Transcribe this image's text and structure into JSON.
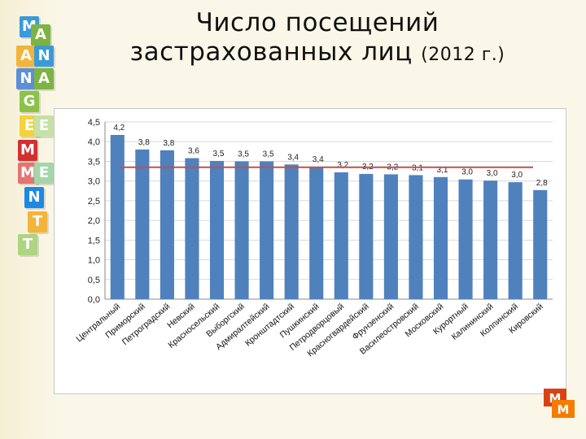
{
  "header": {
    "title_line1": "Число посещений",
    "title_line2": "застрахованных лиц",
    "title_year": "(2012 г.)"
  },
  "decoration": {
    "blocks": [
      "M",
      "A",
      "A",
      "N",
      "N",
      "A",
      "G",
      "E",
      "E",
      "M",
      "M",
      "E",
      "N",
      "T",
      "T"
    ],
    "bottom_blocks": [
      "M",
      "M"
    ]
  },
  "colors": {
    "bar": "#4f81bd",
    "average_line": "#c0504d",
    "grid": "#d9d9d9"
  },
  "chart_data": {
    "type": "bar",
    "title": "",
    "xlabel": "",
    "ylabel": "",
    "ylim": [
      0,
      4.5
    ],
    "yticks": [
      "0,0",
      "0,5",
      "1,0",
      "1,5",
      "2,0",
      "2,5",
      "3,0",
      "3,5",
      "4,0",
      "4,5"
    ],
    "ytick_values": [
      0,
      0.5,
      1.0,
      1.5,
      2.0,
      2.5,
      3.0,
      3.5,
      4.0,
      4.5
    ],
    "grid": "horizontal",
    "categories": [
      "Центральный",
      "Приморский",
      "Петроградский",
      "Невский",
      "Красносельский",
      "Выборгский",
      "Адмиралтейский",
      "Кронштадтский",
      "Пушкинский",
      "Петродворцовый",
      "Красногвардейский",
      "Фрунзенский",
      "Василеостровский",
      "Московский",
      "Курортный",
      "Калининский",
      "Колпинский",
      "Кировский"
    ],
    "values": [
      4.2,
      3.8,
      3.8,
      3.6,
      3.5,
      3.5,
      3.5,
      3.4,
      3.4,
      3.2,
      3.2,
      3.2,
      3.1,
      3.1,
      3.0,
      3.0,
      3.0,
      2.8
    ],
    "labels": [
      "4,2",
      "3,8",
      "3,8",
      "3,6",
      "3,5",
      "3,5",
      "3,5",
      "3,4",
      "3,4",
      "3,2",
      "3,2",
      "3,2",
      "3,1",
      "3,1",
      "3,0",
      "3,0",
      "3,0",
      "2,8"
    ],
    "bar_heights": [
      4.17,
      3.8,
      3.78,
      3.58,
      3.51,
      3.5,
      3.5,
      3.42,
      3.36,
      3.22,
      3.18,
      3.17,
      3.15,
      3.1,
      3.04,
      3.01,
      2.97,
      2.77
    ],
    "reference_line": 3.35
  }
}
